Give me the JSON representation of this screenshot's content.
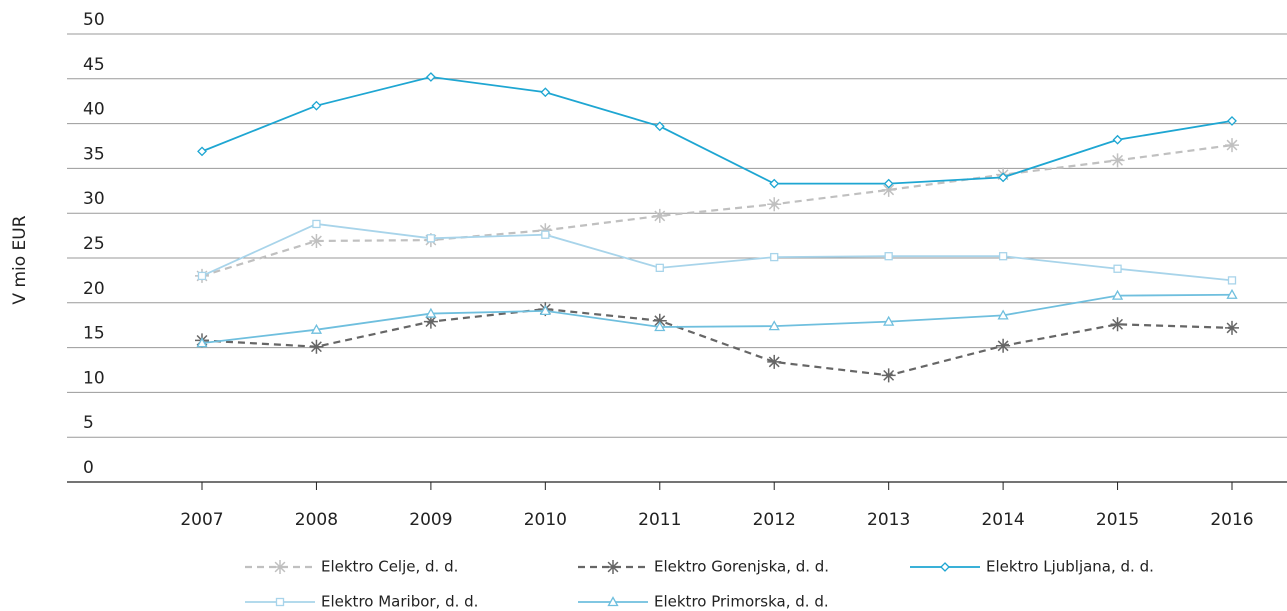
{
  "chart_data": {
    "type": "line",
    "y_label": "V mio EUR",
    "categories": [
      "2007",
      "2008",
      "2009",
      "2010",
      "2011",
      "2012",
      "2013",
      "2014",
      "2015",
      "2016"
    ],
    "ylim": [
      0,
      50
    ],
    "yticks": [
      0,
      5,
      10,
      15,
      20,
      25,
      30,
      35,
      40,
      45,
      50
    ],
    "grid": true,
    "series": [
      {
        "name": "Elektro Celje, d. d.",
        "color": "#c0c0c0",
        "dash": true,
        "marker": "asterisk",
        "values": [
          23.0,
          26.9,
          27.0,
          28.1,
          29.7,
          31.0,
          32.6,
          34.3,
          35.9,
          37.6
        ]
      },
      {
        "name": "Elektro Gorenjska, d. d.",
        "color": "#666666",
        "dash": true,
        "marker": "asterisk",
        "values": [
          15.8,
          15.1,
          17.9,
          19.3,
          18.0,
          13.4,
          11.9,
          15.2,
          17.6,
          17.2
        ]
      },
      {
        "name": "Elektro Ljubljana, d. d.",
        "color": "#1ea6d2",
        "dash": false,
        "marker": "diamond",
        "values": [
          36.9,
          42.0,
          45.2,
          43.5,
          39.7,
          33.3,
          33.3,
          34.0,
          38.2,
          40.3
        ]
      },
      {
        "name": "Elektro Maribor, d. d.",
        "color": "#a8d4ea",
        "dash": false,
        "marker": "square",
        "values": [
          23.0,
          28.8,
          27.2,
          27.6,
          23.9,
          25.1,
          25.2,
          25.2,
          23.8,
          22.5
        ]
      },
      {
        "name": "Elektro Primorska, d. d.",
        "color": "#6fbfde",
        "dash": false,
        "marker": "triangle",
        "values": [
          15.5,
          17.0,
          18.8,
          19.1,
          17.3,
          17.4,
          17.9,
          18.6,
          20.8,
          20.9
        ]
      }
    ]
  }
}
